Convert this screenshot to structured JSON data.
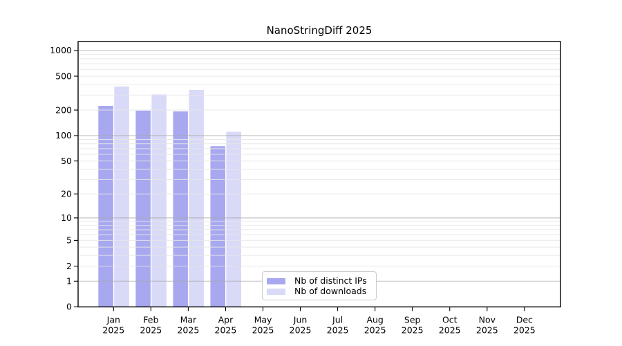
{
  "chart_data": {
    "type": "bar",
    "title": "NanoStringDiff 2025",
    "scale": "log1p",
    "grid": true,
    "legend_position": "lower center",
    "year_label": "2025",
    "categories": [
      "Jan",
      "Feb",
      "Mar",
      "Apr",
      "May",
      "Jun",
      "Jul",
      "Aug",
      "Sep",
      "Oct",
      "Nov",
      "Dec"
    ],
    "series": [
      {
        "name": "Nb of distinct IPs",
        "color": "#a8a8f0",
        "values": [
          224,
          197,
          193,
          75,
          0,
          0,
          0,
          0,
          0,
          0,
          0,
          0
        ]
      },
      {
        "name": "Nb of downloads",
        "color": "#d9d9f8",
        "values": [
          378,
          305,
          345,
          111,
          0,
          0,
          0,
          0,
          0,
          0,
          0,
          0
        ]
      }
    ],
    "y_ticks": [
      0,
      1,
      2,
      5,
      10,
      20,
      50,
      100,
      200,
      500,
      1000
    ],
    "ylim": [
      0,
      1275
    ],
    "xlabel": "",
    "ylabel": ""
  }
}
